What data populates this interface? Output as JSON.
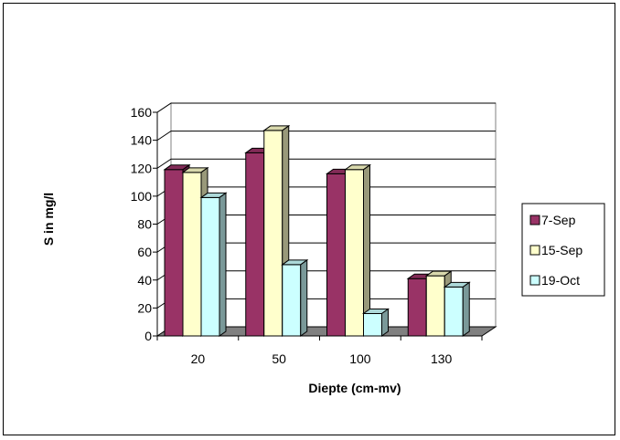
{
  "chart_data": {
    "type": "bar",
    "categories": [
      "20",
      "50",
      "100",
      "130"
    ],
    "series": [
      {
        "name": "7-Sep",
        "values": [
          119,
          131,
          116,
          41
        ],
        "color": "#993366"
      },
      {
        "name": "15-Sep",
        "values": [
          117,
          147,
          119,
          43
        ],
        "color": "#ffffcc"
      },
      {
        "name": "19-Oct",
        "values": [
          99,
          51,
          16,
          35
        ],
        "color": "#ccffff"
      }
    ],
    "xlabel": "Diepte (cm-mv)",
    "ylabel": "S in mg/l",
    "ylim": [
      0,
      160
    ],
    "yticks": [
      "0",
      "20",
      "40",
      "60",
      "80",
      "100",
      "120",
      "140",
      "160"
    ],
    "grid": true,
    "legend_position": "right",
    "style": "3d-column"
  }
}
